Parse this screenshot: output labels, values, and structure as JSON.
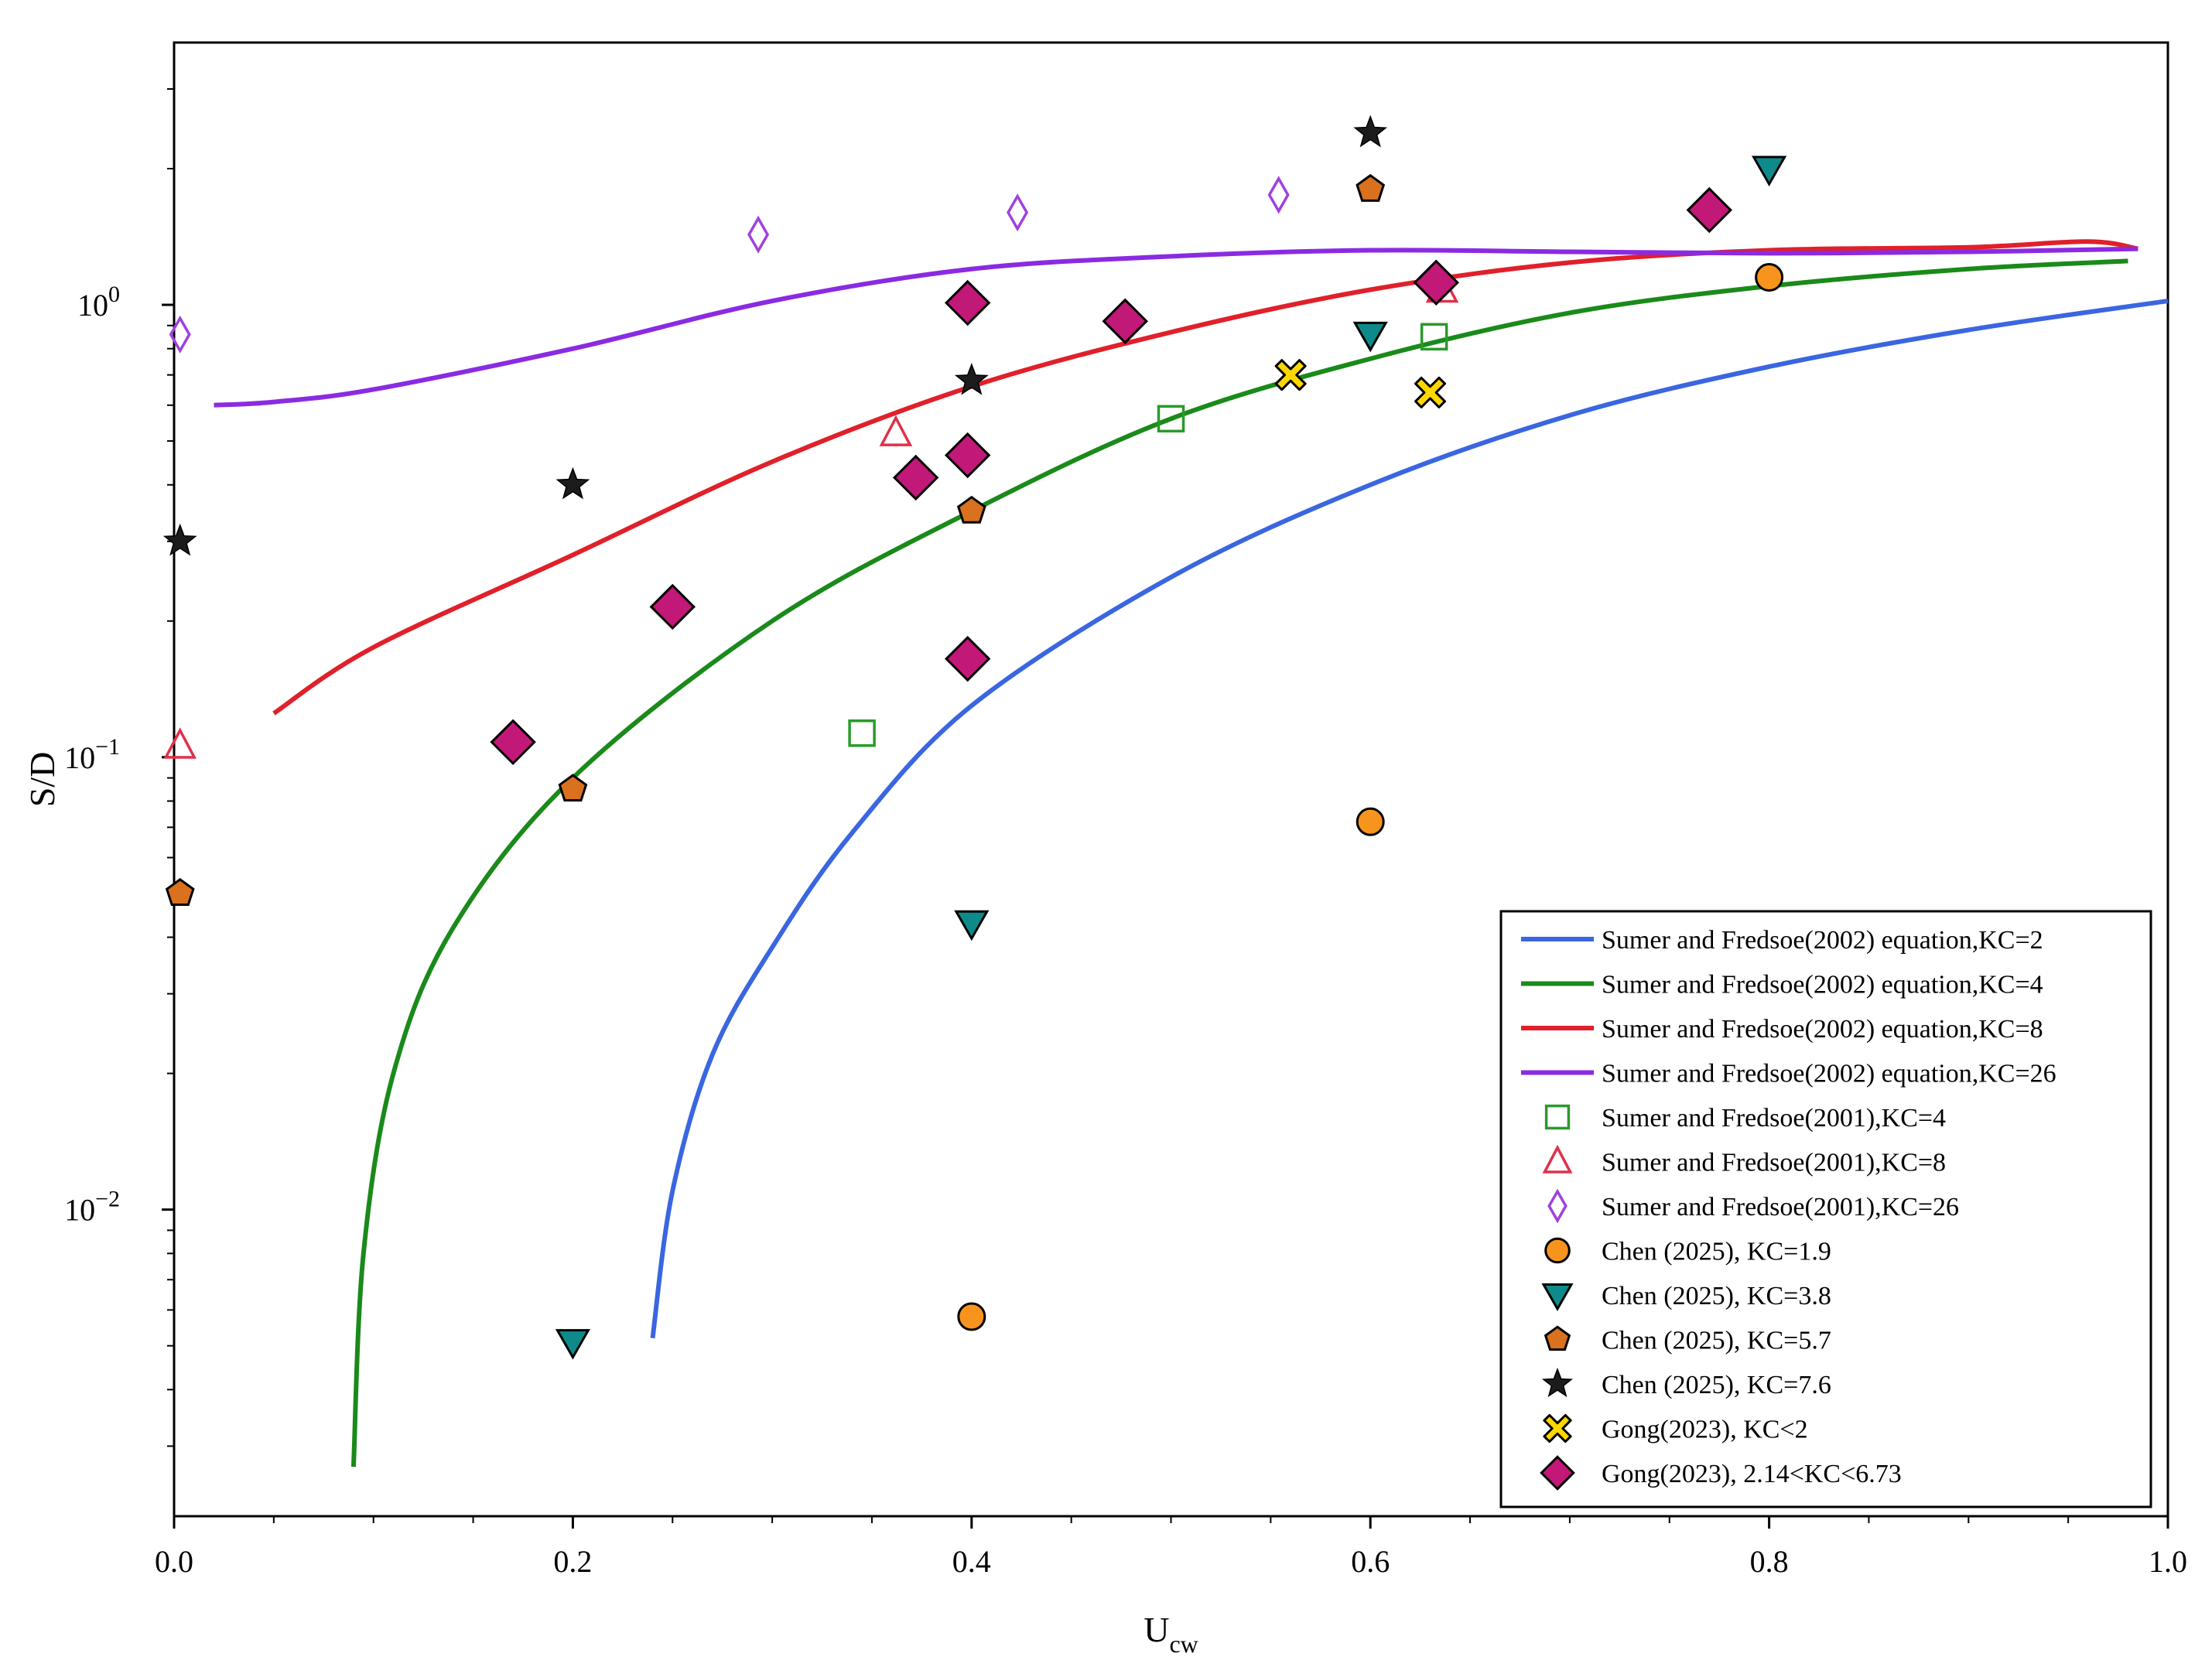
{
  "chart_data": {
    "type": "line+scatter",
    "title": "",
    "xlabel": {
      "main": "U",
      "sub": "cw"
    },
    "ylabel": "S/D",
    "xscale": "linear",
    "yscale": "log",
    "xlim": [
      0.0,
      1.0
    ],
    "ylim": [
      0.0021,
      3.8
    ],
    "xticks": [
      {
        "value": 0.0,
        "label": "0.0"
      },
      {
        "value": 0.2,
        "label": "0.2"
      },
      {
        "value": 0.4,
        "label": "0.4"
      },
      {
        "value": 0.6,
        "label": "0.6"
      },
      {
        "value": 0.8,
        "label": "0.8"
      },
      {
        "value": 1.0,
        "label": "1.0"
      }
    ],
    "yticks": [
      {
        "value": 0.01,
        "base": "10",
        "exp": "−2"
      },
      {
        "value": 0.1,
        "base": "10",
        "exp": "−1"
      },
      {
        "value": 1,
        "base": "10",
        "exp": "0"
      }
    ],
    "legend_position": "lower-right",
    "series": [
      {
        "name": "Sumer and Fredsoe(2002) equation,KC=2",
        "kind": "line",
        "color": "#3a66e0",
        "points": [
          [
            0.24,
            0.0052
          ],
          [
            0.25,
            0.011
          ],
          [
            0.27,
            0.022
          ],
          [
            0.3,
            0.038
          ],
          [
            0.34,
            0.068
          ],
          [
            0.4,
            0.13
          ],
          [
            0.5,
            0.25
          ],
          [
            0.6,
            0.4
          ],
          [
            0.7,
            0.57
          ],
          [
            0.8,
            0.73
          ],
          [
            0.9,
            0.88
          ],
          [
            1.0,
            1.02
          ]
        ]
      },
      {
        "name": "Sumer and Fredsoe(2002) equation,KC=4",
        "kind": "line",
        "color": "#1a8a1a",
        "points": [
          [
            0.09,
            0.0027
          ],
          [
            0.095,
            0.008
          ],
          [
            0.11,
            0.02
          ],
          [
            0.14,
            0.042
          ],
          [
            0.2,
            0.09
          ],
          [
            0.3,
            0.2
          ],
          [
            0.4,
            0.35
          ],
          [
            0.5,
            0.56
          ],
          [
            0.6,
            0.76
          ],
          [
            0.7,
            0.96
          ],
          [
            0.8,
            1.1
          ],
          [
            0.9,
            1.2
          ],
          [
            0.98,
            1.25
          ]
        ]
      },
      {
        "name": "Sumer and Fredsoe(2002) equation,KC=8",
        "kind": "line",
        "color": "#e0202a",
        "points": [
          [
            0.05,
            0.125
          ],
          [
            0.1,
            0.175
          ],
          [
            0.2,
            0.28
          ],
          [
            0.3,
            0.45
          ],
          [
            0.4,
            0.66
          ],
          [
            0.5,
            0.87
          ],
          [
            0.6,
            1.08
          ],
          [
            0.7,
            1.24
          ],
          [
            0.8,
            1.32
          ],
          [
            0.9,
            1.34
          ],
          [
            0.96,
            1.38
          ],
          [
            0.985,
            1.33
          ]
        ]
      },
      {
        "name": "Sumer and Fredsoe(2002) equation,KC=26",
        "kind": "line",
        "color": "#8a2be2",
        "points": [
          [
            0.02,
            0.6
          ],
          [
            0.05,
            0.61
          ],
          [
            0.1,
            0.65
          ],
          [
            0.2,
            0.8
          ],
          [
            0.3,
            1.02
          ],
          [
            0.4,
            1.2
          ],
          [
            0.5,
            1.28
          ],
          [
            0.6,
            1.32
          ],
          [
            0.7,
            1.31
          ],
          [
            0.8,
            1.3
          ],
          [
            0.9,
            1.31
          ],
          [
            0.985,
            1.33
          ]
        ]
      },
      {
        "name": "Sumer and Fredsoe(2001),KC=4",
        "kind": "scatter",
        "marker": "square",
        "color": "#2a9a2a",
        "filled": false,
        "points": [
          [
            0.345,
            0.113
          ],
          [
            0.5,
            0.56
          ],
          [
            0.632,
            0.85
          ]
        ]
      },
      {
        "name": "Sumer and Fredsoe(2001),KC=8",
        "kind": "scatter",
        "marker": "triangle-up",
        "color": "#e0304a",
        "filled": false,
        "points": [
          [
            0.003,
            0.106
          ],
          [
            0.362,
            0.52
          ],
          [
            0.636,
            1.08
          ]
        ]
      },
      {
        "name": "Sumer and Fredsoe(2001),KC=26",
        "kind": "scatter",
        "marker": "diamond-thin",
        "color": "#a040e0",
        "filled": false,
        "points": [
          [
            0.003,
            0.86
          ],
          [
            0.293,
            1.43
          ],
          [
            0.423,
            1.6
          ],
          [
            0.554,
            1.75
          ]
        ]
      },
      {
        "name": "Chen (2025), KC=1.9",
        "kind": "scatter",
        "marker": "circle",
        "color": "#f7941d",
        "filled": true,
        "points": [
          [
            0.4,
            0.0058
          ],
          [
            0.6,
            0.072
          ],
          [
            0.8,
            1.15
          ]
        ]
      },
      {
        "name": "Chen (2025), KC=3.8",
        "kind": "scatter",
        "marker": "triangle-down",
        "color": "#0f8a8a",
        "filled": true,
        "points": [
          [
            0.2,
            0.0051
          ],
          [
            0.4,
            0.043
          ],
          [
            0.6,
            0.86
          ],
          [
            0.8,
            2.0
          ]
        ]
      },
      {
        "name": "Chen (2025), KC=5.7",
        "kind": "scatter",
        "marker": "pentagon",
        "color": "#d9711e",
        "filled": true,
        "points": [
          [
            0.003,
            0.05
          ],
          [
            0.2,
            0.085
          ],
          [
            0.4,
            0.35
          ],
          [
            0.6,
            1.8
          ]
        ]
      },
      {
        "name": "Chen (2025), KC=7.6",
        "kind": "scatter",
        "marker": "star",
        "color": "#1c1c1c",
        "filled": true,
        "points": [
          [
            0.003,
            0.3
          ],
          [
            0.2,
            0.4
          ],
          [
            0.4,
            0.68
          ],
          [
            0.6,
            2.4
          ]
        ]
      },
      {
        "name": "Gong(2023), KC<2",
        "kind": "scatter",
        "marker": "x-cross",
        "color": "#ffd700",
        "filled": true,
        "points": [
          [
            0.56,
            0.7
          ],
          [
            0.63,
            0.64
          ]
        ]
      },
      {
        "name": "Gong(2023), 2.14<KC<6.73",
        "kind": "scatter",
        "marker": "diamond",
        "color": "#c21878",
        "filled": true,
        "points": [
          [
            0.17,
            0.108
          ],
          [
            0.25,
            0.215
          ],
          [
            0.372,
            0.415
          ],
          [
            0.398,
            0.165
          ],
          [
            0.398,
            0.465
          ],
          [
            0.398,
            1.01
          ],
          [
            0.477,
            0.92
          ],
          [
            0.633,
            1.12
          ],
          [
            0.77,
            1.62
          ]
        ]
      }
    ]
  }
}
